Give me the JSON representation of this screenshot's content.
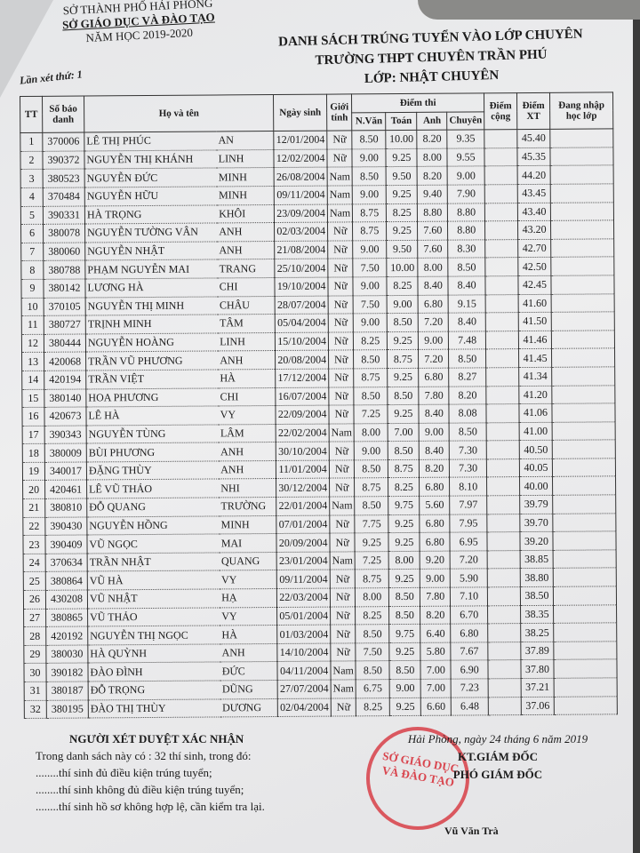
{
  "header_left": {
    "dept": "SỞ THÀNH PHỐ HẢI PHÒNG",
    "org": "SỞ GIÁO DỤC VÀ ĐÀO TẠO",
    "year": "NĂM HỌC 2019-2020"
  },
  "title": {
    "line1": "DANH SÁCH TRÚNG TUYỂN VÀO LỚP CHUYÊN",
    "line2": "TRƯỜNG THPT CHUYÊN TRẦN PHÚ",
    "line3": "LỚP:  NHẬT CHUYÊN"
  },
  "lan_xet": "Lần xét thứ: 1",
  "columns": {
    "tt": "TT",
    "sbd": "Số báo danh",
    "name": "Họ và tên",
    "dob": "Ngày sinh",
    "gender": "Giới tính",
    "scores": "Điểm thi",
    "van": "N.Văn",
    "toan": "Toán",
    "anh": "Anh",
    "chuyen": "Chuyên",
    "cong": "Điểm cộng",
    "xt": "Điểm XT",
    "dang_nhap": "Đang nhập học lớp"
  },
  "rows": [
    [
      "1",
      "370006",
      "LÊ THỊ PHÚC",
      "AN",
      "12/01/2004",
      "Nữ",
      "8.50",
      "10.00",
      "8.20",
      "9.35",
      "",
      "45.40"
    ],
    [
      "2",
      "390372",
      "NGUYỄN THỊ KHÁNH",
      "LINH",
      "12/02/2004",
      "Nữ",
      "9.00",
      "9.25",
      "8.00",
      "9.55",
      "",
      "45.35"
    ],
    [
      "3",
      "380523",
      "NGUYỄN ĐỨC",
      "MINH",
      "26/08/2004",
      "Nam",
      "8.50",
      "9.50",
      "8.20",
      "9.00",
      "",
      "44.20"
    ],
    [
      "4",
      "370484",
      "NGUYỄN HỮU",
      "MINH",
      "09/11/2004",
      "Nam",
      "9.00",
      "9.25",
      "9.40",
      "7.90",
      "",
      "43.45"
    ],
    [
      "5",
      "390331",
      "HÀ TRỌNG",
      "KHÔI",
      "23/09/2004",
      "Nam",
      "8.75",
      "8.25",
      "8.80",
      "8.80",
      "",
      "43.40"
    ],
    [
      "6",
      "380078",
      "NGUYỄN TƯỜNG VÂN",
      "ANH",
      "02/03/2004",
      "Nữ",
      "8.75",
      "9.25",
      "7.60",
      "8.80",
      "",
      "43.20"
    ],
    [
      "7",
      "380060",
      "NGUYỄN NHẬT",
      "ANH",
      "21/08/2004",
      "Nữ",
      "9.00",
      "9.50",
      "7.60",
      "8.30",
      "",
      "42.70"
    ],
    [
      "8",
      "380788",
      "PHẠM NGUYỄN MAI",
      "TRANG",
      "25/10/2004",
      "Nữ",
      "7.50",
      "10.00",
      "8.00",
      "8.50",
      "",
      "42.50"
    ],
    [
      "9",
      "380142",
      "LƯƠNG HÀ",
      "CHI",
      "19/10/2004",
      "Nữ",
      "9.00",
      "8.25",
      "8.40",
      "8.40",
      "",
      "42.45"
    ],
    [
      "10",
      "370105",
      "NGUYỄN THỊ MINH",
      "CHÂU",
      "28/07/2004",
      "Nữ",
      "7.50",
      "9.00",
      "6.80",
      "9.15",
      "",
      "41.60"
    ],
    [
      "11",
      "380727",
      "TRỊNH MINH",
      "TÂM",
      "05/04/2004",
      "Nữ",
      "9.00",
      "8.50",
      "7.20",
      "8.40",
      "",
      "41.50"
    ],
    [
      "12",
      "380444",
      "NGUYỄN HOÀNG",
      "LINH",
      "15/10/2004",
      "Nữ",
      "8.25",
      "9.25",
      "9.00",
      "7.48",
      "",
      "41.46"
    ],
    [
      "13",
      "420068",
      "TRẦN VŨ PHƯƠNG",
      "ANH",
      "20/08/2004",
      "Nữ",
      "8.50",
      "8.75",
      "7.20",
      "8.50",
      "",
      "41.45"
    ],
    [
      "14",
      "420194",
      "TRẦN VIỆT",
      "HÀ",
      "17/12/2004",
      "Nữ",
      "8.75",
      "9.25",
      "6.80",
      "8.27",
      "",
      "41.34"
    ],
    [
      "15",
      "380140",
      "HOA PHƯƠNG",
      "CHI",
      "16/07/2004",
      "Nữ",
      "8.50",
      "8.50",
      "7.80",
      "8.20",
      "",
      "41.20"
    ],
    [
      "16",
      "420673",
      "LÊ HÀ",
      "VY",
      "22/09/2004",
      "Nữ",
      "7.25",
      "9.25",
      "8.40",
      "8.08",
      "",
      "41.06"
    ],
    [
      "17",
      "390343",
      "NGUYỄN TÙNG",
      "LÂM",
      "22/02/2004",
      "Nam",
      "8.00",
      "7.00",
      "9.00",
      "8.50",
      "",
      "41.00"
    ],
    [
      "18",
      "380009",
      "BÙI PHƯƠNG",
      "ANH",
      "30/10/2004",
      "Nữ",
      "9.00",
      "8.50",
      "8.40",
      "7.30",
      "",
      "40.50"
    ],
    [
      "19",
      "340017",
      "ĐẶNG THÙY",
      "ANH",
      "11/01/2004",
      "Nữ",
      "8.50",
      "8.75",
      "8.20",
      "7.30",
      "",
      "40.05"
    ],
    [
      "20",
      "420461",
      "LÊ VŨ THẢO",
      "NHI",
      "30/12/2004",
      "Nữ",
      "8.75",
      "8.25",
      "6.80",
      "8.10",
      "",
      "40.00"
    ],
    [
      "21",
      "380810",
      "ĐỖ QUANG",
      "TRƯỜNG",
      "22/01/2004",
      "Nam",
      "8.50",
      "9.75",
      "5.60",
      "7.97",
      "",
      "39.79"
    ],
    [
      "22",
      "390430",
      "NGUYỄN HỒNG",
      "MINH",
      "07/01/2004",
      "Nữ",
      "7.75",
      "9.25",
      "6.80",
      "7.95",
      "",
      "39.70"
    ],
    [
      "23",
      "390409",
      "VŨ NGỌC",
      "MAI",
      "20/09/2004",
      "Nữ",
      "9.25",
      "9.25",
      "6.80",
      "6.95",
      "",
      "39.20"
    ],
    [
      "24",
      "370634",
      "TRẦN NHẬT",
      "QUANG",
      "23/01/2004",
      "Nam",
      "7.25",
      "8.00",
      "9.20",
      "7.20",
      "",
      "38.85"
    ],
    [
      "25",
      "380864",
      "VŨ HÀ",
      "VY",
      "09/11/2004",
      "Nữ",
      "8.75",
      "9.25",
      "9.00",
      "5.90",
      "",
      "38.80"
    ],
    [
      "26",
      "430208",
      "VŨ NHẬT",
      "HẠ",
      "22/03/2004",
      "Nữ",
      "8.00",
      "8.50",
      "7.80",
      "7.10",
      "",
      "38.50"
    ],
    [
      "27",
      "380865",
      "VŨ THẢO",
      "VY",
      "05/01/2004",
      "Nữ",
      "8.25",
      "8.50",
      "8.20",
      "6.70",
      "",
      "38.35"
    ],
    [
      "28",
      "420192",
      "NGUYỄN THỊ NGỌC",
      "HÀ",
      "01/03/2004",
      "Nữ",
      "8.50",
      "9.75",
      "6.40",
      "6.80",
      "",
      "38.25"
    ],
    [
      "29",
      "380030",
      "HÀ QUỲNH",
      "ANH",
      "14/10/2004",
      "Nữ",
      "7.50",
      "9.25",
      "5.80",
      "7.67",
      "",
      "37.89"
    ],
    [
      "30",
      "390182",
      "ĐÀO ĐÌNH",
      "ĐỨC",
      "04/11/2004",
      "Nam",
      "8.50",
      "8.50",
      "7.00",
      "6.90",
      "",
      "37.80"
    ],
    [
      "31",
      "380187",
      "ĐỖ TRỌNG",
      "DŨNG",
      "27/07/2004",
      "Nam",
      "6.75",
      "9.00",
      "7.00",
      "7.23",
      "",
      "37.21"
    ],
    [
      "32",
      "380195",
      "ĐÀO THỊ THÙY",
      "DƯƠNG",
      "02/04/2004",
      "Nữ",
      "8.25",
      "9.25",
      "6.60",
      "6.48",
      "",
      "37.06"
    ]
  ],
  "footer": {
    "title": "NGƯỜI XÉT DUYỆT XÁC NHẬN",
    "count_line": "Trong danh sách này có :     32   thí sinh, trong đó:",
    "line1": "........thí sinh đủ điều kiện trúng tuyển;",
    "line2": "........thí sinh không đủ điều kiện trúng tuyển;",
    "line3": "........thí sinh hồ sơ không hợp lệ, cần kiểm tra lại."
  },
  "signature": {
    "date": "Hải Phòng, ngày 24 tháng 6 năm 2019",
    "role1": "KT.GIÁM ĐỐC",
    "role2": "PHÓ GIÁM ĐỐC",
    "signer": "Vũ Văn Trà"
  },
  "stamp": {
    "text": "SỞ GIÁO DỤC VÀ ĐÀO TẠO",
    "ring": "CỘNG HÒA XÃ HỘI CHỦ NGHĨA VIỆT NAM · THÀNH PHỐ HẢI PHÒNG",
    "color": "#d62832"
  }
}
